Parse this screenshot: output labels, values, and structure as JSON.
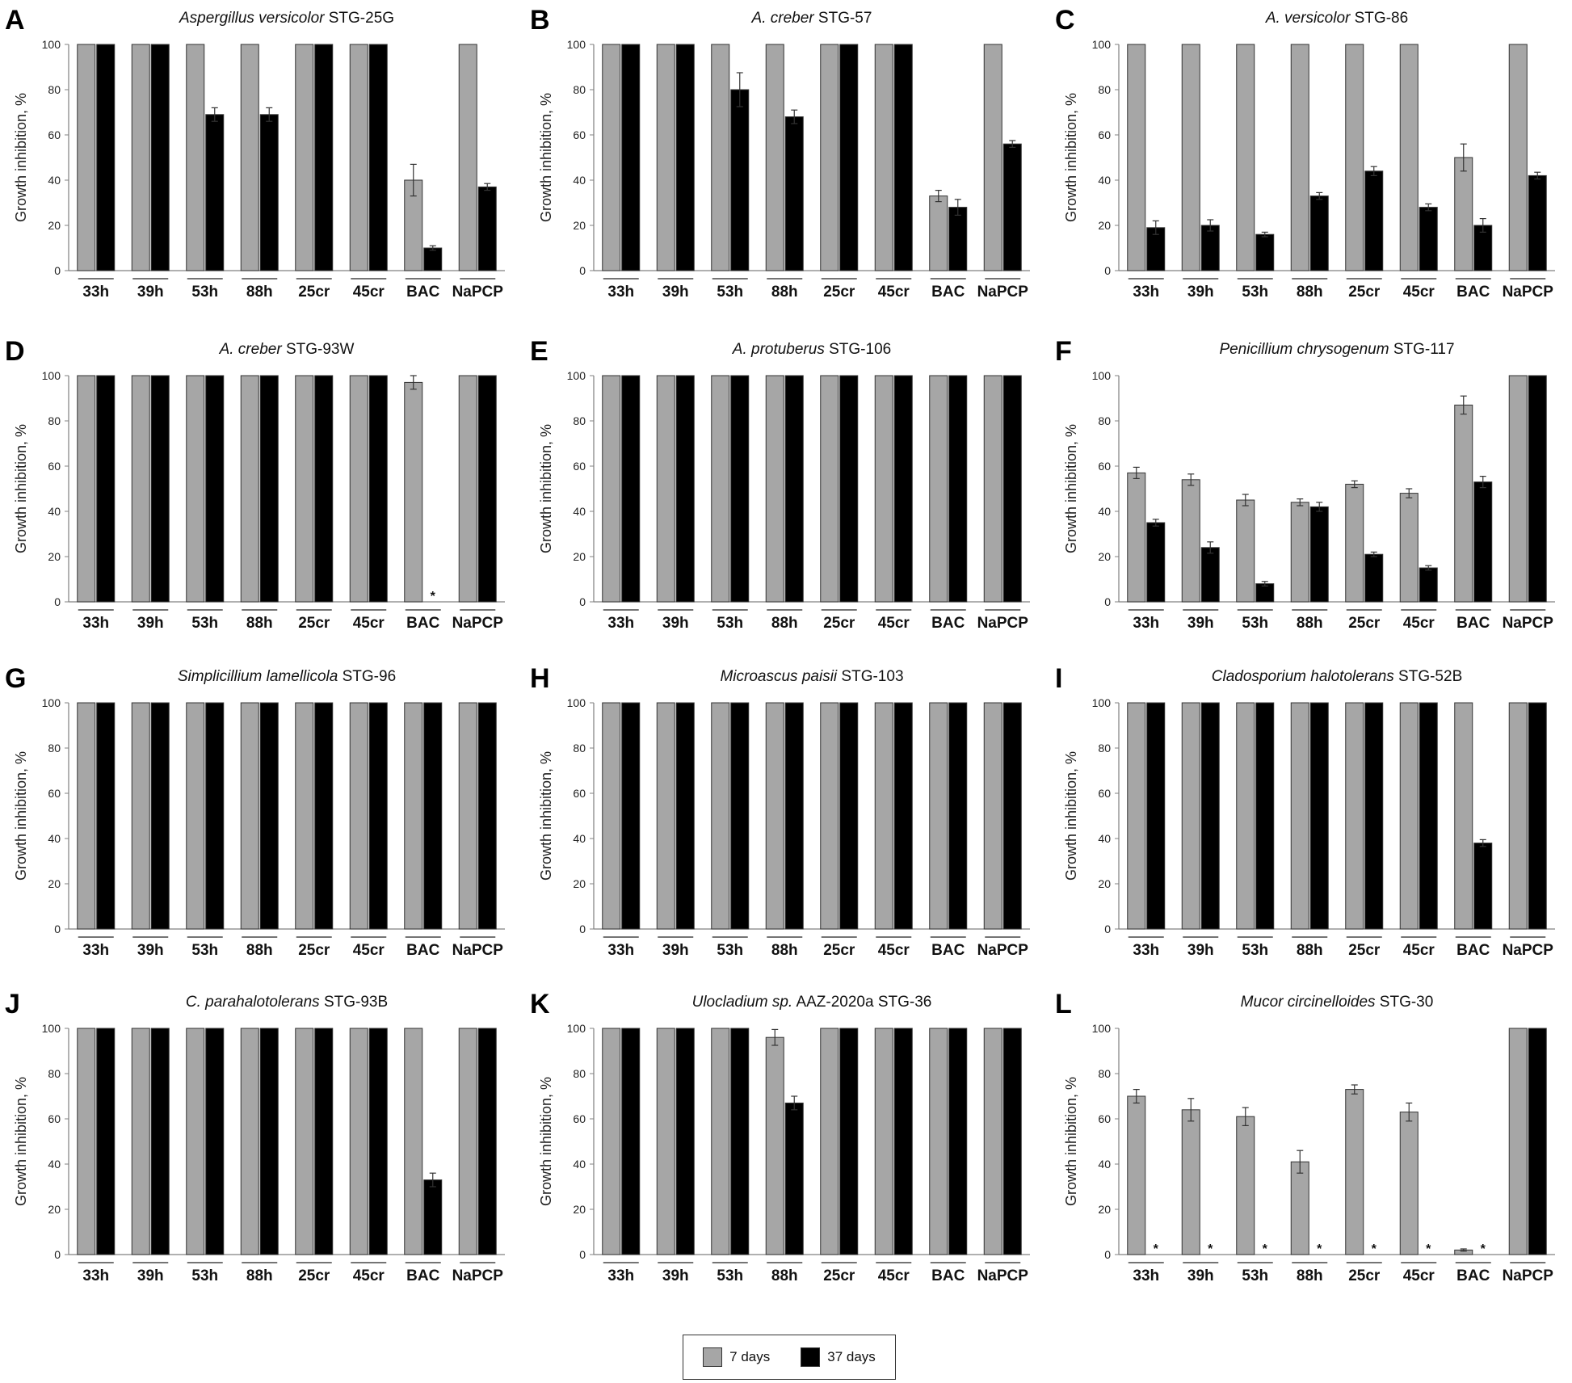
{
  "colors": {
    "series_7d": "#a6a6a6",
    "series_37d": "#000000",
    "axis": "#808080",
    "error_bar": "#333333"
  },
  "legend": [
    {
      "label": "7 days",
      "color": "#a6a6a6"
    },
    {
      "label": "37 days",
      "color": "#000000"
    }
  ],
  "chart_data": [
    {
      "type": "bar",
      "panel": "A",
      "title_italic": "Aspergillus versicolor",
      "title_plain": " STG-25G",
      "ylabel": "Growth inhibition, %",
      "ylim": [
        0,
        100
      ],
      "yticks": [
        0,
        20,
        40,
        60,
        80,
        100
      ],
      "categories": [
        "33h",
        "39h",
        "53h",
        "88h",
        "25cr",
        "45cr",
        "BAC",
        "NaPCP"
      ],
      "series": [
        {
          "name": "7 days",
          "values": [
            100,
            100,
            100,
            100,
            100,
            100,
            40,
            100
          ],
          "errors": [
            0,
            0,
            0,
            0,
            0,
            0,
            7,
            0
          ]
        },
        {
          "name": "37 days",
          "values": [
            100,
            100,
            69,
            69,
            100,
            100,
            10,
            37
          ],
          "errors": [
            0,
            0,
            3,
            3,
            0,
            0,
            1,
            1.5
          ]
        }
      ],
      "asterisks": []
    },
    {
      "type": "bar",
      "panel": "B",
      "title_italic": "A. creber",
      "title_plain": " STG-57",
      "ylabel": "Growth inhibition, %",
      "ylim": [
        0,
        100
      ],
      "yticks": [
        0,
        20,
        40,
        60,
        80,
        100
      ],
      "categories": [
        "33h",
        "39h",
        "53h",
        "88h",
        "25cr",
        "45cr",
        "BAC",
        "NaPCP"
      ],
      "series": [
        {
          "name": "7 days",
          "values": [
            100,
            100,
            100,
            100,
            100,
            100,
            33,
            100
          ],
          "errors": [
            0,
            0,
            0,
            0,
            0,
            0,
            2.5,
            0
          ]
        },
        {
          "name": "37 days",
          "values": [
            100,
            100,
            80,
            68,
            100,
            100,
            28,
            56
          ],
          "errors": [
            0,
            0,
            7.5,
            3,
            0,
            0,
            3.5,
            1.5
          ]
        }
      ],
      "asterisks": []
    },
    {
      "type": "bar",
      "panel": "C",
      "title_italic": "A. versicolor",
      "title_plain": " STG-86",
      "ylabel": "Growth inhibition, %",
      "ylim": [
        0,
        100
      ],
      "yticks": [
        0,
        20,
        40,
        60,
        80,
        100
      ],
      "categories": [
        "33h",
        "39h",
        "53h",
        "88h",
        "25cr",
        "45cr",
        "BAC",
        "NaPCP"
      ],
      "series": [
        {
          "name": "7 days",
          "values": [
            100,
            100,
            100,
            100,
            100,
            100,
            50,
            100
          ],
          "errors": [
            0,
            0,
            0,
            0,
            0,
            0,
            6,
            0
          ]
        },
        {
          "name": "37 days",
          "values": [
            19,
            20,
            16,
            33,
            44,
            28,
            20,
            42
          ],
          "errors": [
            3,
            2.5,
            1,
            1.5,
            2,
            1.5,
            3,
            1.5
          ]
        }
      ],
      "asterisks": []
    },
    {
      "type": "bar",
      "panel": "D",
      "title_italic": "A. creber",
      "title_plain": " STG-93W",
      "ylabel": "Growth inhibition, %",
      "ylim": [
        0,
        100
      ],
      "yticks": [
        0,
        20,
        40,
        60,
        80,
        100
      ],
      "categories": [
        "33h",
        "39h",
        "53h",
        "88h",
        "25cr",
        "45cr",
        "BAC",
        "NaPCP"
      ],
      "series": [
        {
          "name": "7 days",
          "values": [
            100,
            100,
            100,
            100,
            100,
            100,
            97,
            100
          ],
          "errors": [
            0,
            0,
            0,
            0,
            0,
            0,
            3,
            0
          ]
        },
        {
          "name": "37 days",
          "values": [
            100,
            100,
            100,
            100,
            100,
            100,
            0,
            100
          ],
          "errors": [
            0,
            0,
            0,
            0,
            0,
            0,
            0,
            0
          ]
        }
      ],
      "asterisks": [
        "BAC"
      ]
    },
    {
      "type": "bar",
      "panel": "E",
      "title_italic": "A. protuberus",
      "title_plain": " STG-106",
      "ylabel": "Growth inhibition, %",
      "ylim": [
        0,
        100
      ],
      "yticks": [
        0,
        20,
        40,
        60,
        80,
        100
      ],
      "categories": [
        "33h",
        "39h",
        "53h",
        "88h",
        "25cr",
        "45cr",
        "BAC",
        "NaPCP"
      ],
      "series": [
        {
          "name": "7 days",
          "values": [
            100,
            100,
            100,
            100,
            100,
            100,
            100,
            100
          ],
          "errors": [
            0,
            0,
            0,
            0,
            0,
            0,
            0,
            0
          ]
        },
        {
          "name": "37 days",
          "values": [
            100,
            100,
            100,
            100,
            100,
            100,
            100,
            100
          ],
          "errors": [
            0,
            0,
            0,
            0,
            0,
            0,
            0,
            0
          ]
        }
      ],
      "asterisks": []
    },
    {
      "type": "bar",
      "panel": "F",
      "title_italic": "Penicillium chrysogenum",
      "title_plain": " STG-117",
      "ylabel": "Growth inhibition, %",
      "ylim": [
        0,
        100
      ],
      "yticks": [
        0,
        20,
        40,
        60,
        80,
        100
      ],
      "categories": [
        "33h",
        "39h",
        "53h",
        "88h",
        "25cr",
        "45cr",
        "BAC",
        "NaPCP"
      ],
      "series": [
        {
          "name": "7 days",
          "values": [
            57,
            54,
            45,
            44,
            52,
            48,
            87,
            100
          ],
          "errors": [
            2.5,
            2.5,
            2.5,
            1.5,
            1.5,
            2,
            4,
            0
          ]
        },
        {
          "name": "37 days",
          "values": [
            35,
            24,
            8,
            42,
            21,
            15,
            53,
            100
          ],
          "errors": [
            1.5,
            2.5,
            1,
            2,
            1,
            1,
            2.5,
            0
          ]
        }
      ],
      "asterisks": []
    },
    {
      "type": "bar",
      "panel": "G",
      "title_italic": "Simplicillium lamellicola",
      "title_plain": " STG-96",
      "ylabel": "Growth inhibition, %",
      "ylim": [
        0,
        100
      ],
      "yticks": [
        0,
        20,
        40,
        60,
        80,
        100
      ],
      "categories": [
        "33h",
        "39h",
        "53h",
        "88h",
        "25cr",
        "45cr",
        "BAC",
        "NaPCP"
      ],
      "series": [
        {
          "name": "7 days",
          "values": [
            100,
            100,
            100,
            100,
            100,
            100,
            100,
            100
          ],
          "errors": [
            0,
            0,
            0,
            0,
            0,
            0,
            0,
            0
          ]
        },
        {
          "name": "37 days",
          "values": [
            100,
            100,
            100,
            100,
            100,
            100,
            100,
            100
          ],
          "errors": [
            0,
            0,
            0,
            0,
            0,
            0,
            0,
            0
          ]
        }
      ],
      "asterisks": []
    },
    {
      "type": "bar",
      "panel": "H",
      "title_italic": "Microascus paisii",
      "title_plain": " STG-103",
      "ylabel": "Growth inhibition, %",
      "ylim": [
        0,
        100
      ],
      "yticks": [
        0,
        20,
        40,
        60,
        80,
        100
      ],
      "categories": [
        "33h",
        "39h",
        "53h",
        "88h",
        "25cr",
        "45cr",
        "BAC",
        "NaPCP"
      ],
      "series": [
        {
          "name": "7 days",
          "values": [
            100,
            100,
            100,
            100,
            100,
            100,
            100,
            100
          ],
          "errors": [
            0,
            0,
            0,
            0,
            0,
            0,
            0,
            0
          ]
        },
        {
          "name": "37 days",
          "values": [
            100,
            100,
            100,
            100,
            100,
            100,
            100,
            100
          ],
          "errors": [
            0,
            0,
            0,
            0,
            0,
            0,
            0,
            0
          ]
        }
      ],
      "asterisks": []
    },
    {
      "type": "bar",
      "panel": "I",
      "title_italic": "Cladosporium  halotolerans",
      "title_plain": " STG-52B",
      "ylabel": "Growth inhibition, %",
      "ylim": [
        0,
        100
      ],
      "yticks": [
        0,
        20,
        40,
        60,
        80,
        100
      ],
      "categories": [
        "33h",
        "39h",
        "53h",
        "88h",
        "25cr",
        "45cr",
        "BAC",
        "NaPCP"
      ],
      "series": [
        {
          "name": "7 days",
          "values": [
            100,
            100,
            100,
            100,
            100,
            100,
            100,
            100
          ],
          "errors": [
            0,
            0,
            0,
            0,
            0,
            0,
            0,
            0
          ]
        },
        {
          "name": "37 days",
          "values": [
            100,
            100,
            100,
            100,
            100,
            100,
            38,
            100
          ],
          "errors": [
            0,
            0,
            0,
            0,
            0,
            0,
            1.5,
            0
          ]
        }
      ],
      "asterisks": []
    },
    {
      "type": "bar",
      "panel": "J",
      "title_italic": "C.  parahalotolerans",
      "title_plain": " STG-93B",
      "ylabel": "Growth inhibition, %",
      "ylim": [
        0,
        100
      ],
      "yticks": [
        0,
        20,
        40,
        60,
        80,
        100
      ],
      "categories": [
        "33h",
        "39h",
        "53h",
        "88h",
        "25cr",
        "45cr",
        "BAC",
        "NaPCP"
      ],
      "series": [
        {
          "name": "7 days",
          "values": [
            100,
            100,
            100,
            100,
            100,
            100,
            100,
            100
          ],
          "errors": [
            0,
            0,
            0,
            0,
            0,
            0,
            0,
            0
          ]
        },
        {
          "name": "37 days",
          "values": [
            100,
            100,
            100,
            100,
            100,
            100,
            33,
            100
          ],
          "errors": [
            0,
            0,
            0,
            0,
            0,
            0,
            3,
            0
          ]
        }
      ],
      "asterisks": []
    },
    {
      "type": "bar",
      "panel": "K",
      "title_italic": "Ulocladium sp.",
      "title_plain": " AAZ-2020a STG-36",
      "ylabel": "Growth inhibition, %",
      "ylim": [
        0,
        100
      ],
      "yticks": [
        0,
        20,
        40,
        60,
        80,
        100
      ],
      "categories": [
        "33h",
        "39h",
        "53h",
        "88h",
        "25cr",
        "45cr",
        "BAC",
        "NaPCP"
      ],
      "series": [
        {
          "name": "7 days",
          "values": [
            100,
            100,
            100,
            96,
            100,
            100,
            100,
            100
          ],
          "errors": [
            0,
            0,
            0,
            3.5,
            0,
            0,
            0,
            0
          ]
        },
        {
          "name": "37 days",
          "values": [
            100,
            100,
            100,
            67,
            100,
            100,
            100,
            100
          ],
          "errors": [
            0,
            0,
            0,
            3,
            0,
            0,
            0,
            0
          ]
        }
      ],
      "asterisks": []
    },
    {
      "type": "bar",
      "panel": "L",
      "title_italic": "Mucor circinelloides",
      "title_plain": " STG-30",
      "ylabel": "Growth inhibition, %",
      "ylim": [
        0,
        100
      ],
      "yticks": [
        0,
        20,
        40,
        60,
        80,
        100
      ],
      "categories": [
        "33h",
        "39h",
        "53h",
        "88h",
        "25cr",
        "45cr",
        "BAC",
        "NaPCP"
      ],
      "series": [
        {
          "name": "7 days",
          "values": [
            70,
            64,
            61,
            41,
            73,
            63,
            2,
            100
          ],
          "errors": [
            3,
            5,
            4,
            5,
            2,
            4,
            0.5,
            0
          ]
        },
        {
          "name": "37 days",
          "values": [
            0,
            0,
            0,
            0,
            0,
            0,
            0,
            100
          ],
          "errors": [
            0,
            0,
            0,
            0,
            0,
            0,
            0,
            0
          ]
        }
      ],
      "asterisks": [
        "33h",
        "39h",
        "53h",
        "88h",
        "25cr",
        "45cr",
        "BAC"
      ]
    }
  ]
}
